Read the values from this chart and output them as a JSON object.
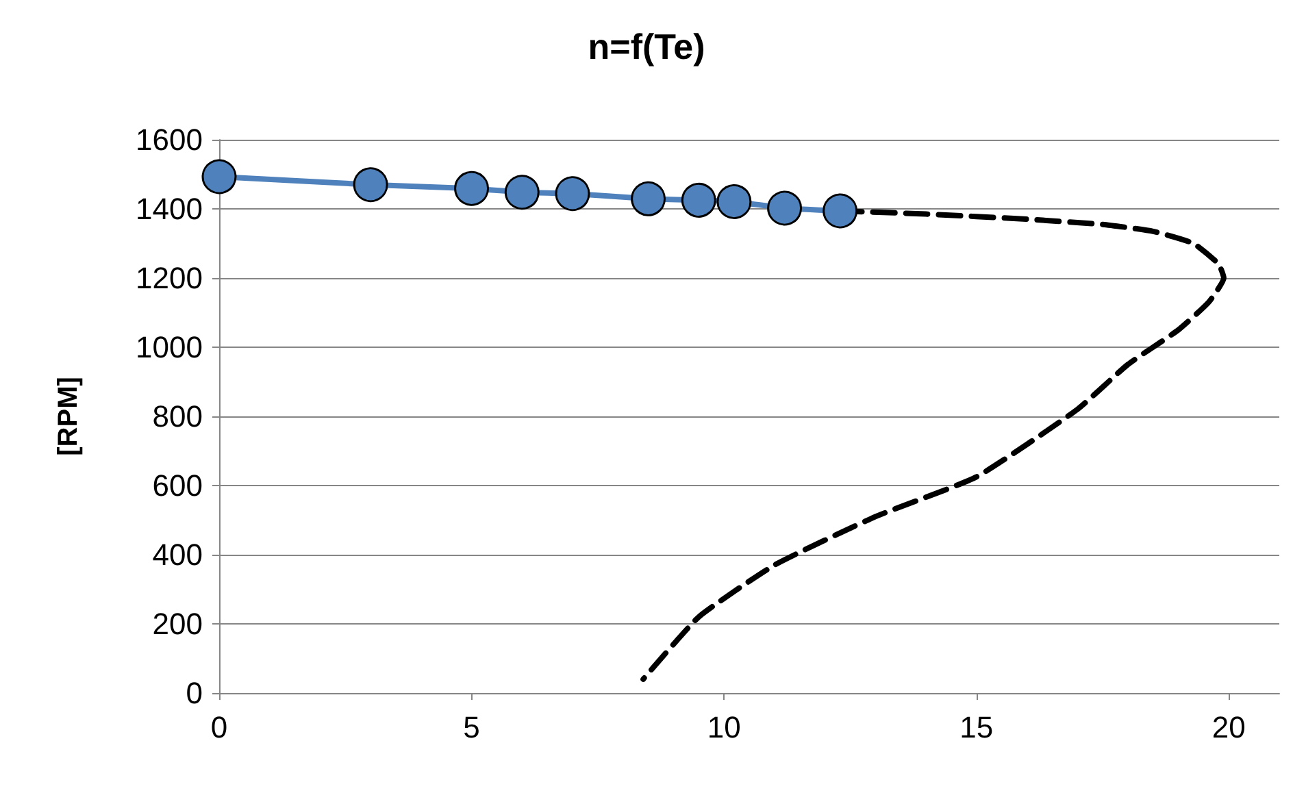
{
  "chart_data": {
    "type": "line",
    "title": "n=f(Te)",
    "ylabel": "[RPM]",
    "xlim": [
      0,
      21
    ],
    "xticks": [
      0,
      5,
      10,
      15,
      20
    ],
    "ylim": [
      0,
      1600
    ],
    "yticks": [
      0,
      200,
      400,
      600,
      800,
      1000,
      1200,
      1400,
      1600
    ],
    "grid": "y",
    "series": [
      {
        "color": "#4f81bd",
        "marker": "circle",
        "line_style": "solid",
        "x": [
          0,
          3,
          5,
          6,
          7,
          8.5,
          9.5,
          10.2,
          11.2,
          12.3
        ],
        "values": [
          1493,
          1470,
          1459,
          1448,
          1444,
          1429,
          1425,
          1421,
          1402,
          1394
        ]
      },
      {
        "color": "#000000",
        "marker": "none",
        "line_style": "dashed",
        "x": [
          12.3,
          14,
          16,
          17.5,
          18.5,
          19.3,
          19.8,
          19.9,
          19.6,
          19,
          18,
          17,
          15,
          13,
          11,
          9.5,
          8.4
        ],
        "values": [
          1394,
          1385,
          1370,
          1355,
          1335,
          1300,
          1240,
          1200,
          1130,
          1050,
          950,
          820,
          625,
          510,
          370,
          220,
          40
        ]
      }
    ]
  }
}
